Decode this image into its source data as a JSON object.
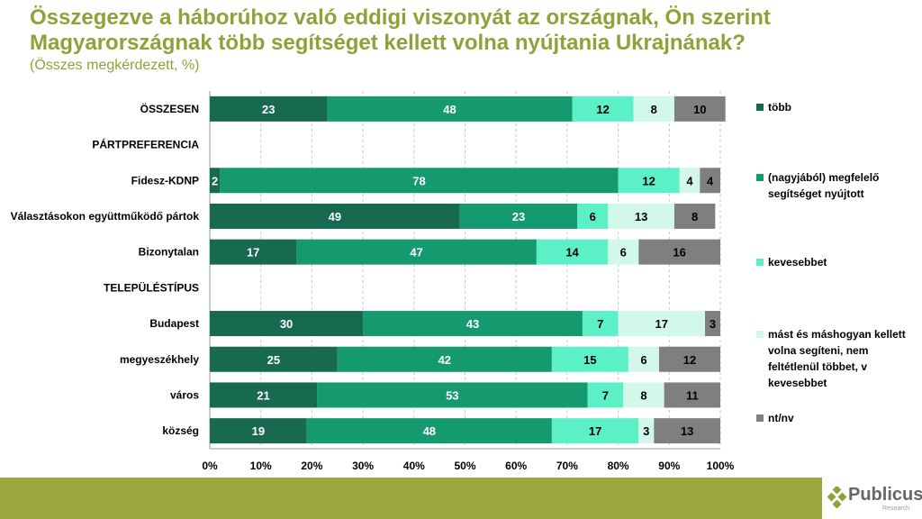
{
  "header": {
    "title": "Összegezve a háborúhoz való eddigi viszonyát az országnak, Ön szerint Magyarországnak több segítséget kellett volna nyújtania Ukrajnának?",
    "subtitle": "(Összes megkérdezett, %)"
  },
  "chart_data": {
    "type": "bar",
    "orientation": "horizontal",
    "stacked": true,
    "categories": [
      "ÖSSZESEN",
      "PÁRTPREFERENCIA",
      "Fidesz-KDNP",
      "Választásokon együttműködő pártok",
      "Bizonytalan",
      "TELEPÜLÉSTÍPUS",
      "Budapest",
      "megyeszékhely",
      "város",
      "község"
    ],
    "series": [
      {
        "name": "több",
        "color": "#17694f",
        "values": [
          23,
          null,
          2,
          49,
          17,
          null,
          30,
          25,
          21,
          19
        ]
      },
      {
        "name": "(nagyjából) megfelelő segítséget nyújtott",
        "color": "#15996f",
        "values": [
          48,
          null,
          78,
          23,
          47,
          null,
          43,
          42,
          53,
          48
        ]
      },
      {
        "name": "kevesebbet",
        "color": "#5cf0c6",
        "values": [
          12,
          null,
          12,
          6,
          14,
          null,
          7,
          15,
          7,
          17
        ]
      },
      {
        "name": "mást és máshogyan kellett volna segíteni, nem feltétlenül többet, v kevesebbet",
        "color": "#d2f8ec",
        "values": [
          8,
          null,
          4,
          13,
          6,
          null,
          17,
          6,
          8,
          3
        ]
      },
      {
        "name": "nt/nv",
        "color": "#7f7f7f",
        "values": [
          10,
          null,
          4,
          8,
          16,
          null,
          3,
          12,
          11,
          13
        ]
      }
    ],
    "xlim": [
      0,
      100
    ],
    "xticks": [
      "0%",
      "10%",
      "20%",
      "30%",
      "40%",
      "50%",
      "60%",
      "70%",
      "80%",
      "90%",
      "100%"
    ],
    "grid": "vertical dashed",
    "legend": "right"
  },
  "footer": {
    "logo": "Publicus",
    "logo_sub": "Research"
  }
}
